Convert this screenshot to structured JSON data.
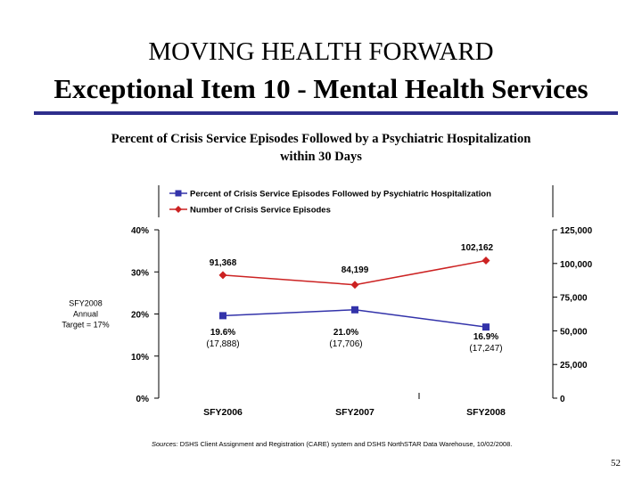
{
  "slide": {
    "title_line1": "MOVING HEALTH FORWARD",
    "title_line2": "Exceptional Item 10 - Mental Health Services",
    "page_number": "52",
    "colors": {
      "rule": "#2e2e8c",
      "percent_series": "#3333aa",
      "count_series": "#cc2222"
    }
  },
  "source_note": {
    "prefix": "Sources:",
    "text": " DSHS Client Assignment and Registration (CARE) system and DSHS NorthSTAR Data Warehouse, 10/02/2008."
  },
  "chart_data": {
    "type": "line",
    "title": "Percent of Crisis Service Episodes Followed by a Psychiatric Hospitalization within 30 Days",
    "categories": [
      "SFY2006",
      "SFY2007",
      "SFY2008"
    ],
    "series": [
      {
        "name": "Percent of Crisis Service Episodes Followed by Psychiatric Hospitalization",
        "axis": "left",
        "values": [
          19.6,
          21.0,
          16.9
        ],
        "labels": [
          [
            "19.6%",
            "(17,888)"
          ],
          [
            "21.0%",
            "(17,706)"
          ],
          [
            "16.9%",
            "(17,247)"
          ]
        ],
        "color": "#3333aa",
        "marker": "square"
      },
      {
        "name": "Number of Crisis Service Episodes",
        "axis": "right",
        "values": [
          91368,
          84199,
          102162
        ],
        "labels": [
          "91,368",
          "84,199",
          "102,162"
        ],
        "color": "#cc2222",
        "marker": "diamond"
      }
    ],
    "left_axis": {
      "ylim": [
        0,
        40
      ],
      "ticks": [
        0,
        10,
        20,
        30,
        40
      ],
      "tick_labels": [
        "0%",
        "10%",
        "20%",
        "30%",
        "40%"
      ]
    },
    "right_axis": {
      "ylim": [
        0,
        125000
      ],
      "ticks": [
        0,
        25000,
        50000,
        75000,
        100000,
        125000
      ],
      "tick_labels": [
        "0",
        "25,000",
        "50,000",
        "75,000",
        "100,000",
        "125,000"
      ]
    },
    "annotation": {
      "lines": [
        "SFY2008",
        "Annual",
        "Target = 17%"
      ],
      "value": 17
    },
    "legend_position": "top"
  }
}
